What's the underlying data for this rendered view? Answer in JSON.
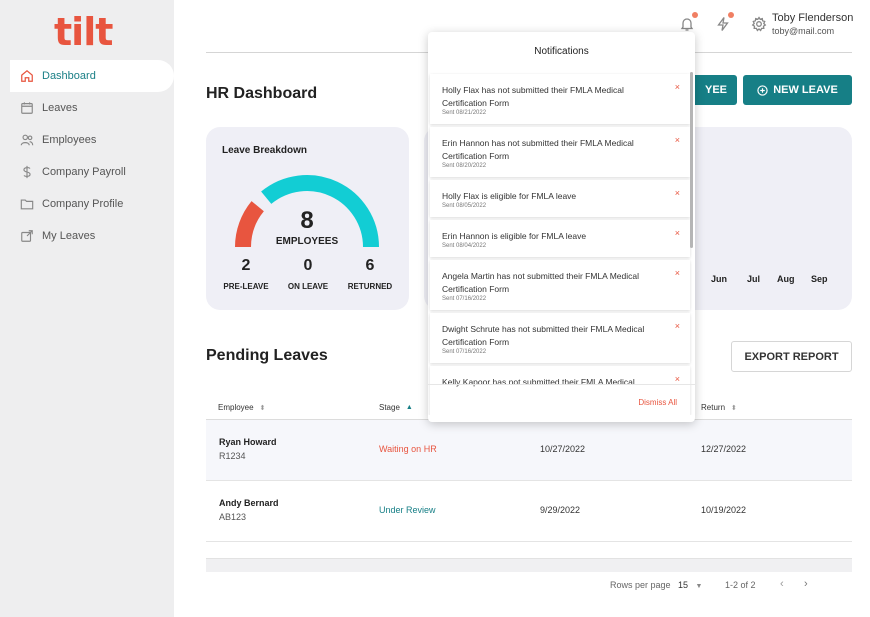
{
  "app": {
    "logo": "tilt"
  },
  "sidebar": {
    "items": [
      {
        "label": "Dashboard",
        "icon": "home-icon"
      },
      {
        "label": "Leaves",
        "icon": "calendar-icon"
      },
      {
        "label": "Employees",
        "icon": "users-icon"
      },
      {
        "label": "Company Payroll",
        "icon": "dollar-icon"
      },
      {
        "label": "Company Profile",
        "icon": "folder-icon"
      },
      {
        "label": "My Leaves",
        "icon": "external-link-icon"
      }
    ]
  },
  "header": {
    "user_name": "Toby Flenderson",
    "user_email": "toby@mail.com",
    "icons": [
      "bell-icon",
      "lightning-icon",
      "gear-icon"
    ]
  },
  "page": {
    "title": "HR Dashboard",
    "add_employee_label": "YEE",
    "new_leave_label": "NEW LEAVE"
  },
  "leave_breakdown": {
    "title": "Leave Breakdown",
    "total": "8",
    "total_label": "EMPLOYEES",
    "stats": [
      {
        "value": "2",
        "label": "PRE-LEAVE"
      },
      {
        "value": "0",
        "label": "ON LEAVE"
      },
      {
        "value": "6",
        "label": "RETURNED"
      }
    ],
    "gauge_fractions": {
      "pre_leave": 0.25,
      "returned": 0.75
    }
  },
  "months": [
    "Jun",
    "Jul",
    "Aug",
    "Sep"
  ],
  "pending": {
    "title": "Pending Leaves",
    "export_label": "EXPORT REPORT",
    "columns": [
      "Employee",
      "Stage",
      "Return"
    ],
    "rows": [
      {
        "name": "Ryan Howard",
        "id": "R1234",
        "stage": "Waiting on HR",
        "stage_color": "#e8553f",
        "start": "10/27/2022",
        "return": "12/27/2022"
      },
      {
        "name": "Andy Bernard",
        "id": "AB123",
        "stage": "Under Review",
        "stage_color": "#167f86",
        "start": "9/29/2022",
        "return": "10/19/2022"
      }
    ],
    "rows_per_page_label": "Rows per page",
    "rows_per_page": "15",
    "range": "1-2 of 2"
  },
  "notifications": {
    "title": "Notifications",
    "dismiss_label": "Dismiss All",
    "items": [
      {
        "msg": "Holly Flax has not submitted their FMLA Medical Certification Form",
        "date": "Sent 08/21/2022"
      },
      {
        "msg": "Erin Hannon has not submitted their FMLA Medical Certification Form",
        "date": "Sent 08/20/2022"
      },
      {
        "msg": "Holly Flax is eligible for FMLA leave",
        "date": "Sent 08/05/2022"
      },
      {
        "msg": "Erin Hannon is eligible for FMLA leave",
        "date": "Sent 08/04/2022"
      },
      {
        "msg": "Angela Martin has not submitted their FMLA Medical Certification Form",
        "date": "Sent 07/16/2022"
      },
      {
        "msg": "Dwight Schrute has not submitted their FMLA Medical Certification Form",
        "date": "Sent 07/16/2022"
      },
      {
        "msg": "Kelly Kapoor has not submitted their FMLA Medical",
        "date": ""
      }
    ]
  }
}
